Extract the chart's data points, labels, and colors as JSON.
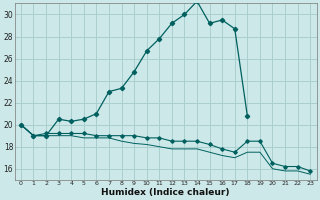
{
  "xlabel": "Humidex (Indice chaleur)",
  "background_color": "#cde8e8",
  "grid_color": "#aacfcf",
  "line_color": "#006060",
  "xlim": [
    -0.5,
    23.5
  ],
  "ylim": [
    15,
    31
  ],
  "yticks": [
    16,
    18,
    20,
    22,
    24,
    26,
    28,
    30
  ],
  "xticks": [
    0,
    1,
    2,
    3,
    4,
    5,
    6,
    7,
    8,
    9,
    10,
    11,
    12,
    13,
    14,
    15,
    16,
    17,
    18,
    19,
    20,
    21,
    22,
    23
  ],
  "series1_x": [
    0,
    1,
    2,
    3,
    4,
    5,
    6,
    7,
    8,
    9,
    10,
    11,
    12,
    13,
    14,
    15,
    16,
    17,
    18
  ],
  "series1_y": [
    20.0,
    19.0,
    19.0,
    20.5,
    20.3,
    20.5,
    21.0,
    23.0,
    23.3,
    24.8,
    26.7,
    27.8,
    29.2,
    30.0,
    31.2,
    29.2,
    29.5,
    28.7,
    20.8
  ],
  "series2_x": [
    0,
    1,
    2,
    3,
    4,
    5,
    6,
    7,
    8,
    9,
    10,
    11,
    12,
    13,
    14,
    15,
    16,
    17,
    18,
    19,
    20,
    21,
    22,
    23
  ],
  "series2_y": [
    20.0,
    19.0,
    19.2,
    19.2,
    19.2,
    19.2,
    19.0,
    19.0,
    19.0,
    19.0,
    18.8,
    18.8,
    18.5,
    18.5,
    18.5,
    18.2,
    17.8,
    17.5,
    18.5,
    18.5,
    16.5,
    16.2,
    16.2,
    15.8
  ],
  "series3_x": [
    0,
    1,
    2,
    3,
    4,
    5,
    6,
    7,
    8,
    9,
    10,
    11,
    12,
    13,
    14,
    15,
    16,
    17,
    18,
    19,
    20,
    21,
    22,
    23
  ],
  "series3_y": [
    20.0,
    19.0,
    19.0,
    19.0,
    19.0,
    18.8,
    18.8,
    18.8,
    18.5,
    18.3,
    18.2,
    18.0,
    17.8,
    17.8,
    17.8,
    17.5,
    17.2,
    17.0,
    17.5,
    17.5,
    16.0,
    15.8,
    15.8,
    15.5
  ]
}
